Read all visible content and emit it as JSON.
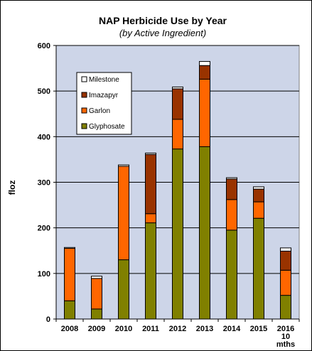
{
  "chart_data": {
    "type": "bar",
    "stacked": true,
    "title": "NAP Herbicide Use by Year",
    "subtitle": "(by Active Ingredient)",
    "xlabel": "",
    "ylabel": "floz",
    "ylim": [
      0,
      600
    ],
    "yticks": [
      "0",
      "100",
      "200",
      "300",
      "400",
      "500",
      "600"
    ],
    "grid": true,
    "legend_position": "top-left",
    "categories": [
      "2008",
      "2009",
      "2010",
      "2011",
      "2012",
      "2013",
      "2014",
      "2015",
      "2016\n10\nmths"
    ],
    "series": [
      {
        "name": "Glyphosate",
        "color": "#808000",
        "values": [
          40,
          22,
          130,
          211,
          373,
          378,
          195,
          221,
          52
        ]
      },
      {
        "name": "Garlon",
        "color": "#ff6600",
        "values": [
          115,
          67,
          205,
          20,
          65,
          148,
          67,
          36,
          55
        ]
      },
      {
        "name": "Imazapyr",
        "color": "#993300",
        "values": [
          0,
          0,
          0,
          130,
          67,
          30,
          45,
          28,
          42
        ]
      },
      {
        "name": "Milestone",
        "color": "#ffffff",
        "values": [
          2,
          5,
          3,
          3,
          4,
          9,
          3,
          5,
          7
        ]
      }
    ],
    "legend_order": [
      "Milestone",
      "Imazapyr",
      "Garlon",
      "Glyphosate"
    ],
    "colors": {
      "plot_bg": "#cdd5e8",
      "gridline": "#000000",
      "milestone": "#ffffff"
    }
  }
}
